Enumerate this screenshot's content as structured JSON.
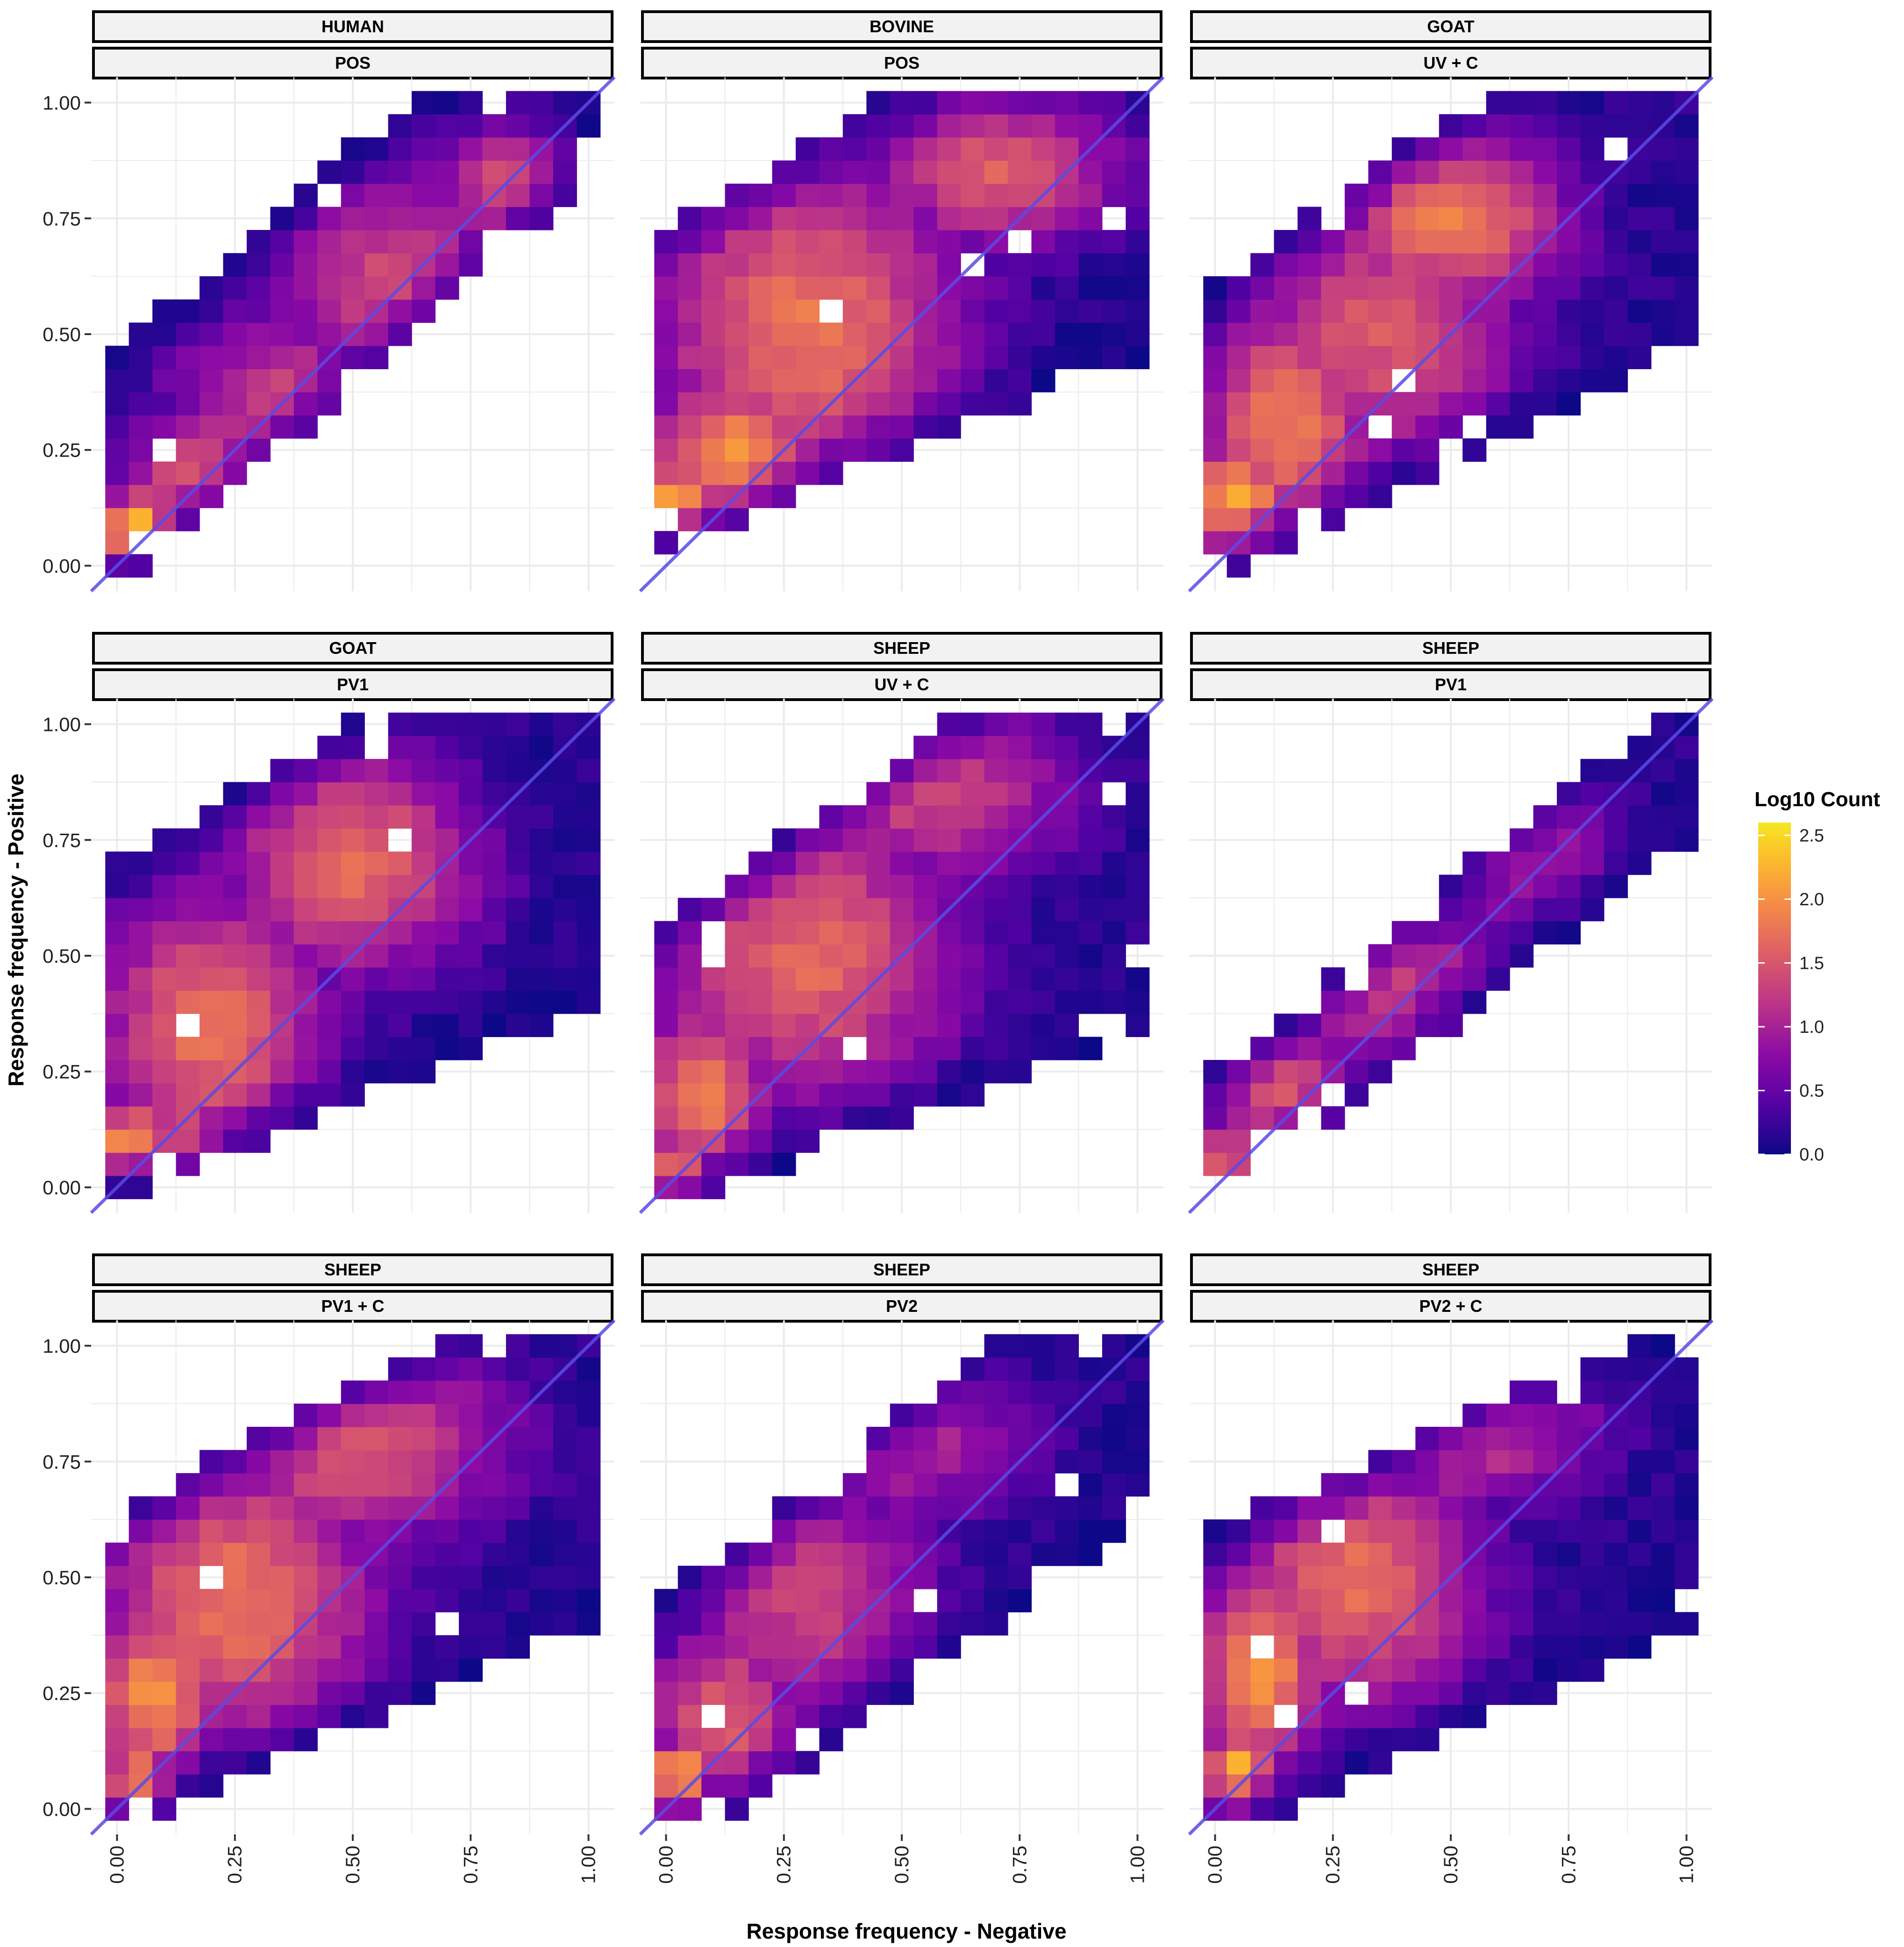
{
  "chart_data": {
    "type": "heatmap",
    "title": "",
    "xlabel": "Response frequency - Negative",
    "ylabel": "Response frequency - Positive",
    "xlim": [
      0,
      1
    ],
    "ylim": [
      0,
      1
    ],
    "x_ticks": [
      "0.00",
      "0.25",
      "0.50",
      "0.75",
      "1.00"
    ],
    "y_ticks": [
      "0.00",
      "0.25",
      "0.50",
      "0.75",
      "1.00"
    ],
    "reference_line": "y = x",
    "reference_line_color": "#5a4be6",
    "grid": true,
    "colorscale": "plasma",
    "legend": {
      "title": "Log10 Count",
      "placement": "right",
      "range": [
        0,
        2.6
      ],
      "ticks": [
        "0.0",
        "0.5",
        "1.0",
        "1.5",
        "2.0",
        "2.5"
      ]
    },
    "panels": [
      {
        "strip_top": "HUMAN",
        "strip_bottom": "POS",
        "density": [
          {
            "x": 0.05,
            "y": 0.08,
            "v": 2.5,
            "sx": 0.07,
            "sy": 0.06
          },
          {
            "x": 0.2,
            "y": 0.18,
            "v": 1.65,
            "sx": 0.14,
            "sy": 0.12
          },
          {
            "x": 0.35,
            "y": 0.35,
            "v": 1.3,
            "sx": 0.18,
            "sy": 0.16
          },
          {
            "x": 0.6,
            "y": 0.6,
            "v": 1.4,
            "sx": 0.2,
            "sy": 0.2
          },
          {
            "x": 0.82,
            "y": 0.82,
            "v": 1.45,
            "sx": 0.1,
            "sy": 0.1
          }
        ],
        "support": {
          "y_min_at_x0": -0.05,
          "y_min_slope": 0.9,
          "y_max_at_x0": 0.46,
          "y_max_slope": 0.86,
          "x_min": 0.0,
          "x_max": 1.0,
          "y_max": 1.0,
          "fill": 0.88
        }
      },
      {
        "strip_top": "BOVINE",
        "strip_bottom": "POS",
        "density": [
          {
            "x": 0.03,
            "y": 0.14,
            "v": 2.6,
            "sx": 0.06,
            "sy": 0.06
          },
          {
            "x": 0.15,
            "y": 0.22,
            "v": 2.0,
            "sx": 0.14,
            "sy": 0.16
          },
          {
            "x": 0.3,
            "y": 0.52,
            "v": 1.75,
            "sx": 0.25,
            "sy": 0.28
          },
          {
            "x": 0.7,
            "y": 0.85,
            "v": 1.55,
            "sx": 0.2,
            "sy": 0.12
          }
        ],
        "support": {
          "y_min_at_x0": 0.04,
          "y_min_slope": 0.42,
          "y_max_at_x0": 0.72,
          "y_max_slope": 0.6,
          "x_min": 0.0,
          "x_max": 1.0,
          "y_max": 1.0,
          "fill": 0.94
        }
      },
      {
        "strip_top": "GOAT",
        "strip_bottom": "UV + C",
        "density": [
          {
            "x": 0.05,
            "y": 0.14,
            "v": 2.2,
            "sx": 0.08,
            "sy": 0.1
          },
          {
            "x": 0.15,
            "y": 0.3,
            "v": 1.8,
            "sx": 0.14,
            "sy": 0.2
          },
          {
            "x": 0.5,
            "y": 0.75,
            "v": 1.85,
            "sx": 0.18,
            "sy": 0.14
          },
          {
            "x": 0.35,
            "y": 0.5,
            "v": 1.5,
            "sx": 0.22,
            "sy": 0.22
          }
        ],
        "support": {
          "y_min_at_x0": -0.02,
          "y_min_slope": 0.5,
          "y_max_at_x0": 0.6,
          "y_max_slope": 0.75,
          "x_min": 0.0,
          "x_max": 1.0,
          "y_max": 1.0,
          "fill": 0.92
        }
      },
      {
        "strip_top": "GOAT",
        "strip_bottom": "PV1",
        "density": [
          {
            "x": 0.03,
            "y": 0.1,
            "v": 2.2,
            "sx": 0.06,
            "sy": 0.06
          },
          {
            "x": 0.15,
            "y": 0.1,
            "v": 2.0,
            "sx": 0.08,
            "sy": 0.06
          },
          {
            "x": 0.2,
            "y": 0.35,
            "v": 1.75,
            "sx": 0.18,
            "sy": 0.22
          },
          {
            "x": 0.5,
            "y": 0.7,
            "v": 1.7,
            "sx": 0.2,
            "sy": 0.18
          }
        ],
        "support": {
          "y_min_at_x0": -0.02,
          "y_min_slope": 0.42,
          "y_max_at_x0": 0.7,
          "y_max_slope": 0.6,
          "x_min": 0.0,
          "x_max": 1.0,
          "y_max": 1.0,
          "fill": 0.93
        }
      },
      {
        "strip_top": "SHEEP",
        "strip_bottom": "UV + C",
        "density": [
          {
            "x": 0.03,
            "y": 0.03,
            "v": 2.4,
            "sx": 0.05,
            "sy": 0.05
          },
          {
            "x": 0.08,
            "y": 0.2,
            "v": 1.9,
            "sx": 0.1,
            "sy": 0.14
          },
          {
            "x": 0.3,
            "y": 0.5,
            "v": 1.65,
            "sx": 0.24,
            "sy": 0.24
          },
          {
            "x": 0.55,
            "y": 0.85,
            "v": 1.35,
            "sx": 0.24,
            "sy": 0.14
          }
        ],
        "support": {
          "y_min_at_x0": -0.04,
          "y_min_slope": 0.38,
          "y_max_at_x0": 0.56,
          "y_max_slope": 0.75,
          "x_min": 0.0,
          "x_max": 1.0,
          "y_max": 1.0,
          "fill": 0.9
        }
      },
      {
        "strip_top": "SHEEP",
        "strip_bottom": "PV1",
        "density": [
          {
            "x": 0.03,
            "y": 0.05,
            "v": 2.3,
            "sx": 0.05,
            "sy": 0.05
          },
          {
            "x": 0.15,
            "y": 0.2,
            "v": 1.5,
            "sx": 0.12,
            "sy": 0.12
          },
          {
            "x": 0.35,
            "y": 0.45,
            "v": 1.25,
            "sx": 0.2,
            "sy": 0.2
          },
          {
            "x": 0.6,
            "y": 0.75,
            "v": 1.2,
            "sx": 0.18,
            "sy": 0.14
          }
        ],
        "support": {
          "y_min_at_x0": -0.04,
          "y_min_slope": 0.8,
          "y_max_at_x0": 0.24,
          "y_max_slope": 0.82,
          "x_min": 0.0,
          "x_max": 1.0,
          "y_max": 1.0,
          "fill": 0.78
        }
      },
      {
        "strip_top": "SHEEP",
        "strip_bottom": "PV1 + C",
        "density": [
          {
            "x": 0.05,
            "y": 0.05,
            "v": 2.4,
            "sx": 0.06,
            "sy": 0.06
          },
          {
            "x": 0.08,
            "y": 0.25,
            "v": 2.0,
            "sx": 0.1,
            "sy": 0.14
          },
          {
            "x": 0.25,
            "y": 0.45,
            "v": 1.75,
            "sx": 0.22,
            "sy": 0.24
          },
          {
            "x": 0.5,
            "y": 0.8,
            "v": 1.6,
            "sx": 0.24,
            "sy": 0.16
          }
        ],
        "support": {
          "y_min_at_x0": -0.04,
          "y_min_slope": 0.45,
          "y_max_at_x0": 0.63,
          "y_max_slope": 0.55,
          "x_min": 0.0,
          "x_max": 1.0,
          "y_max": 1.0,
          "fill": 0.95
        }
      },
      {
        "strip_top": "SHEEP",
        "strip_bottom": "PV2",
        "density": [
          {
            "x": 0.03,
            "y": 0.08,
            "v": 2.2,
            "sx": 0.05,
            "sy": 0.06
          },
          {
            "x": 0.12,
            "y": 0.2,
            "v": 1.6,
            "sx": 0.12,
            "sy": 0.14
          },
          {
            "x": 0.3,
            "y": 0.45,
            "v": 1.3,
            "sx": 0.2,
            "sy": 0.22
          },
          {
            "x": 0.5,
            "y": 0.8,
            "v": 1.1,
            "sx": 0.2,
            "sy": 0.14
          }
        ],
        "support": {
          "y_min_at_x0": -0.12,
          "y_min_slope": 0.75,
          "y_max_at_x0": 0.45,
          "y_max_slope": 0.8,
          "x_min": 0.0,
          "x_max": 1.0,
          "y_max": 1.0,
          "fill": 0.82
        }
      },
      {
        "strip_top": "SHEEP",
        "strip_bottom": "PV2 + C",
        "density": [
          {
            "x": 0.05,
            "y": 0.08,
            "v": 2.4,
            "sx": 0.05,
            "sy": 0.07
          },
          {
            "x": 0.1,
            "y": 0.3,
            "v": 2.0,
            "sx": 0.1,
            "sy": 0.16
          },
          {
            "x": 0.3,
            "y": 0.5,
            "v": 1.7,
            "sx": 0.2,
            "sy": 0.22
          },
          {
            "x": 0.5,
            "y": 0.85,
            "v": 1.5,
            "sx": 0.22,
            "sy": 0.14
          }
        ],
        "support": {
          "y_min_at_x0": -0.06,
          "y_min_slope": 0.45,
          "y_max_at_x0": 0.6,
          "y_max_slope": 0.45,
          "x_min": 0.0,
          "x_max": 1.0,
          "y_max": 1.0,
          "fill": 0.93
        }
      }
    ]
  }
}
